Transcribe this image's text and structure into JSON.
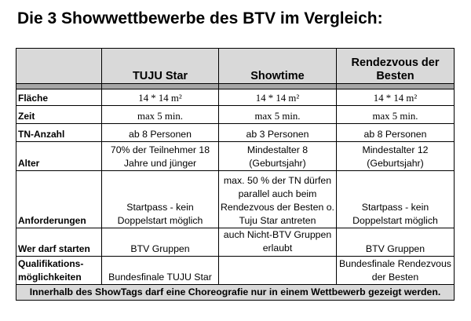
{
  "title": "Die 3 Showwettbewerbe des BTV im Vergleich:",
  "columns": [
    "TUJU Star",
    "Showtime",
    "Rendezvous der Besten"
  ],
  "rows": [
    {
      "label": "Fläche",
      "values": [
        "14 * 14 m²",
        "14 * 14 m²",
        "14 * 14 m²"
      ]
    },
    {
      "label": "Zeit",
      "values": [
        "max 5 min.",
        "max 5 min.",
        "max 5 min."
      ]
    },
    {
      "label": "TN-Anzahl",
      "values": [
        "ab 8 Personen",
        "ab 3 Personen",
        "ab 8 Personen"
      ]
    },
    {
      "label": "Alter",
      "values": [
        "70% der Teilnehmer 18 Jahre und jünger",
        "Mindestalter 8 (Geburtsjahr)",
        "Mindestalter 12 (Geburtsjahr)"
      ]
    },
    {
      "label": "Anforderungen",
      "values": [
        "Startpass - kein Doppelstart möglich",
        "max. 50 % der TN dürfen parallel auch beim Rendezvous der Besten o. Tuju Star antreten",
        "Startpass - kein Doppelstart möglich"
      ]
    },
    {
      "label": "Wer darf starten",
      "values": [
        "BTV Gruppen",
        "auch Nicht-BTV Gruppen erlaubt",
        "BTV Gruppen"
      ]
    },
    {
      "label": "Qualifikations-möglichkeiten",
      "values": [
        "Bundesfinale TUJU Star",
        "",
        "Bundesfinale Rendezvous der Besten"
      ]
    }
  ],
  "footer": "Innerhalb des ShowTags darf eine Choreografie nur in einem Wettbewerb gezeigt werden."
}
